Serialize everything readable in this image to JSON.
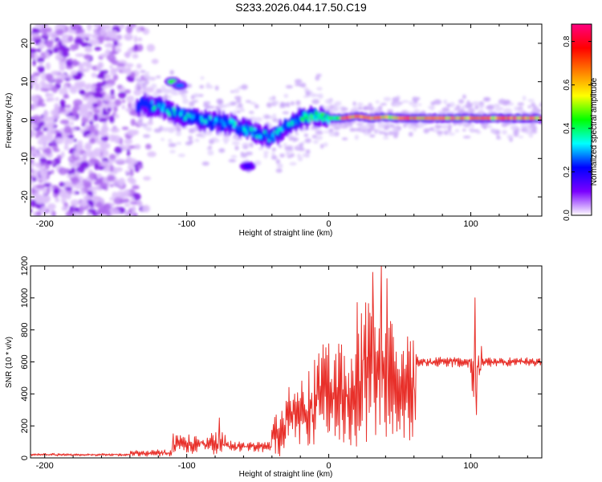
{
  "title": "S233.2026.044.17.50.C19",
  "chart_data": [
    {
      "type": "heatmap",
      "name": "spectrogram",
      "xlabel": "Height of straight line (km)",
      "ylabel": "Frequency (Hz)",
      "xlim": [
        -210,
        150
      ],
      "ylim": [
        -25,
        25
      ],
      "xticks": [
        -200,
        -100,
        0,
        100
      ],
      "yticks": [
        -20,
        -10,
        0,
        10,
        20
      ],
      "colorbar": {
        "label": "Normalized spectral amplitude",
        "range": [
          0.0,
          0.88
        ],
        "ticks": [
          0.0,
          0.2,
          0.4,
          0.6,
          0.8
        ],
        "colors": [
          "#ffffff",
          "#7a00ff",
          "#0000ff",
          "#00ffff",
          "#00ff00",
          "#ffff00",
          "#ff8000",
          "#ff0000",
          "#ff0080"
        ]
      },
      "ridge": {
        "x": [
          -130,
          -120,
          -110,
          -100,
          -90,
          -80,
          -70,
          -60,
          -50,
          -40,
          -30,
          -20,
          -10,
          0,
          10,
          20,
          30,
          40,
          50,
          60,
          70,
          80,
          90,
          100,
          110,
          120,
          130,
          150
        ],
        "y": [
          4,
          3.5,
          2,
          1,
          0,
          -0.5,
          -1,
          -2,
          -3.5,
          -4.5,
          -1.5,
          0.5,
          1,
          0.5,
          0.5,
          1,
          0.5,
          0.8,
          0.5,
          0.5,
          0.5,
          0.5,
          0.5,
          0.5,
          0.5,
          0.5,
          0.5,
          0.5
        ]
      },
      "noise_region": {
        "x": [
          -210,
          -120
        ],
        "y": [
          -25,
          25
        ]
      },
      "patches": [
        {
          "x": -110,
          "y": 10,
          "amplitude": 0.5
        },
        {
          "x": -57,
          "y": -12,
          "amplitude": 0.2
        },
        {
          "x": -105,
          "y": 9,
          "amplitude": 0.3
        }
      ]
    },
    {
      "type": "line",
      "name": "snr",
      "xlabel": "Height of straight line (km)",
      "ylabel": "SNR (10 * v/v)",
      "xlim": [
        -210,
        150
      ],
      "ylim": [
        0,
        1200
      ],
      "xticks": [
        -200,
        -100,
        0,
        100
      ],
      "yticks": [
        0,
        200,
        400,
        600,
        800,
        1000,
        1200
      ],
      "color": "#e8302a",
      "segments": [
        {
          "x_start": -210,
          "x_end": -140,
          "base": 20,
          "amp": 15
        },
        {
          "x_start": -140,
          "x_end": -110,
          "base": 30,
          "amp": 40
        },
        {
          "x_start": -110,
          "x_end": -70,
          "base": 90,
          "amp": 120
        },
        {
          "x_start": -70,
          "x_end": -40,
          "base": 70,
          "amp": 60
        },
        {
          "x_start": -40,
          "x_end": -30,
          "base": 150,
          "amp": 250
        },
        {
          "x_start": -30,
          "x_end": -10,
          "base": 280,
          "amp": 450
        },
        {
          "x_start": -10,
          "x_end": 20,
          "base": 400,
          "amp": 600
        },
        {
          "x_start": 20,
          "x_end": 45,
          "base": 550,
          "amp": 850
        },
        {
          "x_start": 45,
          "x_end": 62,
          "base": 450,
          "amp": 700
        },
        {
          "x_start": 62,
          "x_end": 100,
          "base": 600,
          "amp": 60
        },
        {
          "x_start": 100,
          "x_end": 108,
          "base": 550,
          "amp": 300
        },
        {
          "x_start": 108,
          "x_end": 150,
          "base": 600,
          "amp": 50
        }
      ],
      "peaks": [
        {
          "x": 37,
          "y": 1200
        },
        {
          "x": 31,
          "y": 1160
        },
        {
          "x": 41,
          "y": 1120
        },
        {
          "x": 103,
          "y": 1000
        },
        {
          "x": 104,
          "y": 270
        },
        {
          "x": -77,
          "y": 250
        }
      ]
    }
  ]
}
